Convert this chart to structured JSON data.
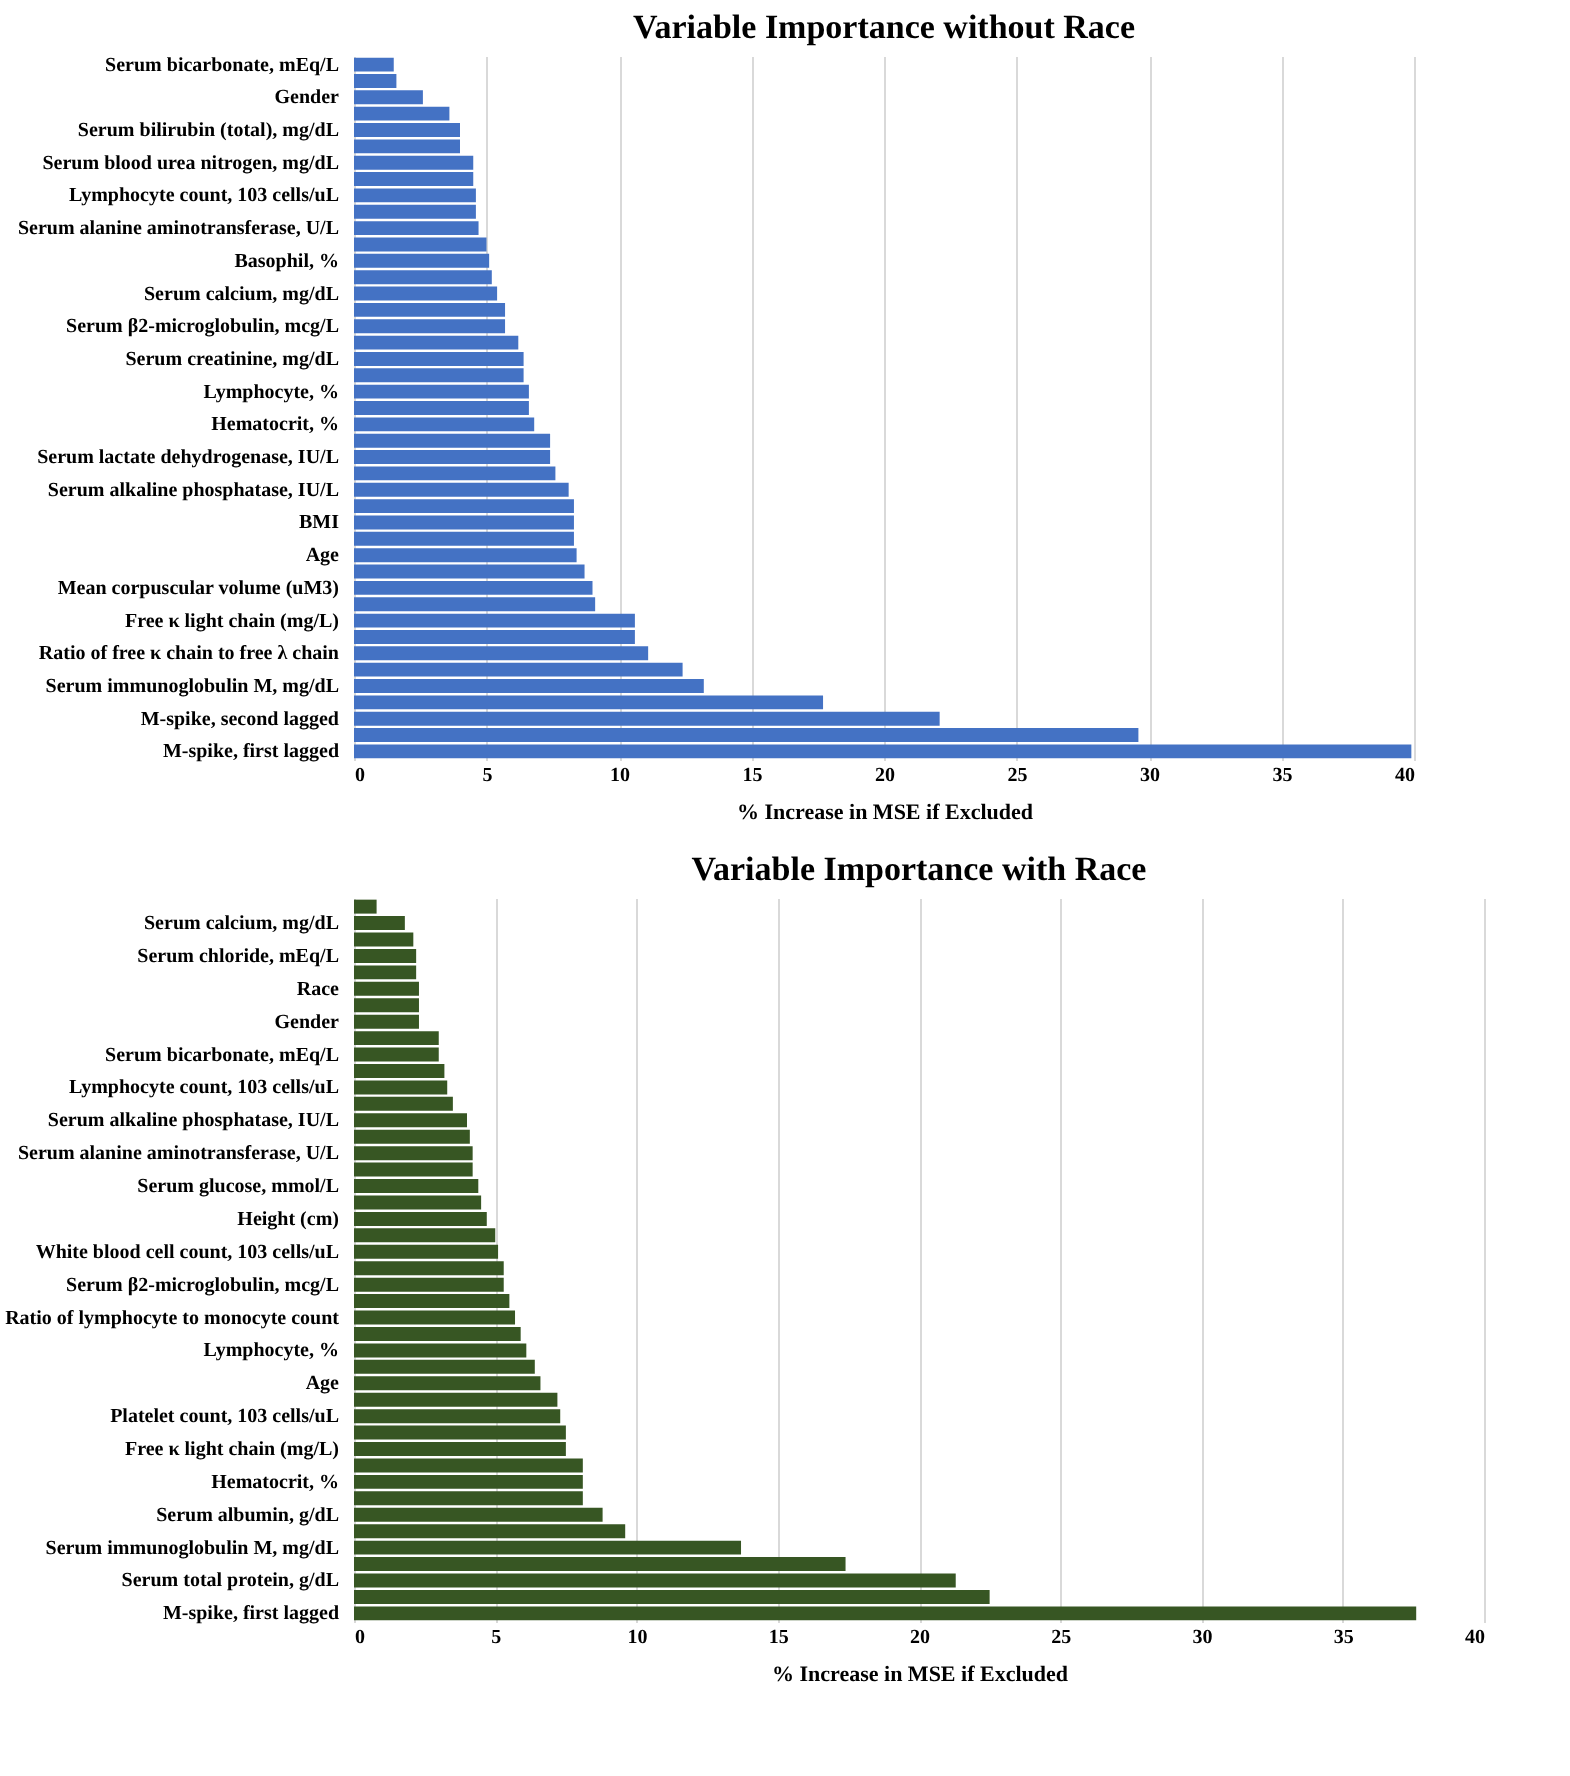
{
  "chart_data": [
    {
      "type": "bar",
      "orientation": "horizontal",
      "title": "Variable Importance without Race",
      "xlabel": "% Increase in MSE if Excluded",
      "color": "#4472c4",
      "categories": [
        "Serum bicarbonate, mEq/L",
        null,
        "Gender",
        null,
        "Serum bilirubin (total), mg/dL",
        null,
        "Serum blood urea nitrogen, mg/dL",
        null,
        "Lymphocyte count, 103 cells/uL",
        null,
        "Serum alanine aminotransferase, U/L",
        null,
        "Basophil, %",
        null,
        "Serum calcium, mg/dL",
        null,
        "Serum β2-microglobulin,  mcg/L",
        null,
        "Serum creatinine, mg/dL",
        null,
        "Lymphocyte, %",
        null,
        "Hematocrit, %",
        null,
        "Serum lactate dehydrogenase, IU/L",
        null,
        "Serum alkaline phosphatase, IU/L",
        null,
        "BMI",
        null,
        "Age",
        null,
        "Mean corpuscular volume (uM3)",
        null,
        "Free κ light chain (mg/L)",
        null,
        "Ratio of free κ chain to free λ chain",
        null,
        "Serum immunoglobulin M, mg/dL",
        null,
        "M-spike, second lagged",
        null,
        "M-spike, first lagged"
      ],
      "values": [
        1.5,
        1.6,
        2.6,
        3.6,
        4.0,
        4.0,
        4.5,
        4.5,
        4.6,
        4.6,
        4.7,
        5.0,
        5.1,
        5.2,
        5.4,
        5.7,
        5.7,
        6.2,
        6.4,
        6.4,
        6.6,
        6.6,
        6.8,
        7.4,
        7.4,
        7.6,
        8.1,
        8.3,
        8.3,
        8.3,
        8.4,
        8.7,
        9.0,
        9.1,
        10.6,
        10.6,
        11.1,
        12.4,
        13.2,
        17.7,
        22.1,
        29.6,
        39.9
      ],
      "xlim": [
        0,
        40
      ],
      "xticks": [
        0,
        5,
        10,
        15,
        20,
        25,
        30,
        35,
        40
      ],
      "grid": "x"
    },
    {
      "type": "bar",
      "orientation": "horizontal",
      "title": "Variable Importance with Race",
      "xlabel": "% Increase in MSE if Excluded",
      "color": "#375623",
      "categories": [
        null,
        "Serum calcium, mg/dL",
        null,
        "Serum chloride, mEq/L",
        null,
        "Race",
        null,
        "Gender",
        null,
        "Serum bicarbonate, mEq/L",
        null,
        "Lymphocyte count, 103 cells/uL",
        null,
        "Serum alkaline phosphatase, IU/L",
        null,
        "Serum alanine aminotransferase, U/L",
        null,
        "Serum glucose, mmol/L",
        null,
        "Height (cm)",
        null,
        "White blood cell count, 103 cells/uL",
        null,
        "Serum β2-microglobulin,  mcg/L",
        null,
        "Ratio of lymphocyte to monocyte count",
        null,
        "Lymphocyte, %",
        null,
        "Age",
        null,
        "Platelet count, 103 cells/uL",
        null,
        "Free κ light chain (mg/L)",
        null,
        "Hematocrit, %",
        null,
        "Serum albumin, g/dL",
        null,
        "Serum immunoglobulin M, mg/dL",
        null,
        "Serum total protein, g/dL",
        null,
        "M-spike, first lagged"
      ],
      "values": [
        0.8,
        1.8,
        2.1,
        2.2,
        2.2,
        2.3,
        2.3,
        2.3,
        3.0,
        3.0,
        3.2,
        3.3,
        3.5,
        4.0,
        4.1,
        4.2,
        4.2,
        4.4,
        4.5,
        4.7,
        5.0,
        5.1,
        5.3,
        5.3,
        5.5,
        5.7,
        5.9,
        6.1,
        6.4,
        6.6,
        7.2,
        7.3,
        7.5,
        7.5,
        8.1,
        8.1,
        8.1,
        8.8,
        9.6,
        13.7,
        17.4,
        21.3,
        22.5,
        37.6
      ],
      "xlim": [
        0,
        40
      ],
      "xticks": [
        0,
        5,
        10,
        15,
        20,
        25,
        30,
        35,
        40
      ],
      "grid": "x"
    }
  ]
}
